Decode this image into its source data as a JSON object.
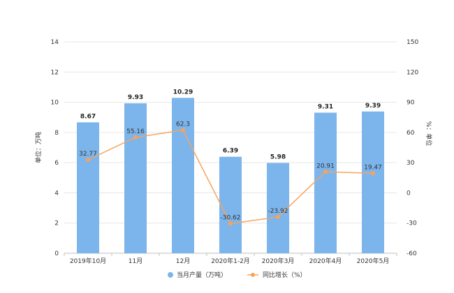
{
  "chart_data": {
    "type": "bar",
    "categories": [
      "2019年10月",
      "11月",
      "12月",
      "2020年1-2月",
      "2020年3月",
      "2020年4月",
      "2020年5月"
    ],
    "series": [
      {
        "name": "当月产量（万吨）",
        "kind": "bar",
        "axis": "left",
        "values": [
          8.67,
          9.93,
          10.29,
          6.39,
          5.98,
          9.31,
          9.39
        ],
        "labels": [
          "8.67",
          "9.93",
          "10.29",
          "6.39",
          "5.98",
          "9.31",
          "9.39"
        ],
        "color": "#7cb5ec"
      },
      {
        "name": "同比增长（%）",
        "kind": "line",
        "axis": "right",
        "values": [
          32.77,
          55.16,
          62.3,
          -30.62,
          -23.92,
          20.91,
          19.47
        ],
        "labels": [
          "32.77",
          "55.16",
          "62.3",
          "-30.62",
          "-23.92",
          "20.91",
          "19.47"
        ],
        "color": "#f7a35c"
      }
    ],
    "y_left": {
      "label": "单位：万吨",
      "range": [
        0,
        14
      ],
      "ticks": [
        "0",
        "2",
        "4",
        "6",
        "8",
        "10",
        "12",
        "14"
      ]
    },
    "y_right": {
      "label": "%：单位",
      "range": [
        -60,
        150
      ],
      "ticks": [
        "-60",
        "-30",
        "0",
        "30",
        "60",
        "90",
        "120",
        "150"
      ]
    },
    "grid": true,
    "legend_position": "bottom"
  }
}
